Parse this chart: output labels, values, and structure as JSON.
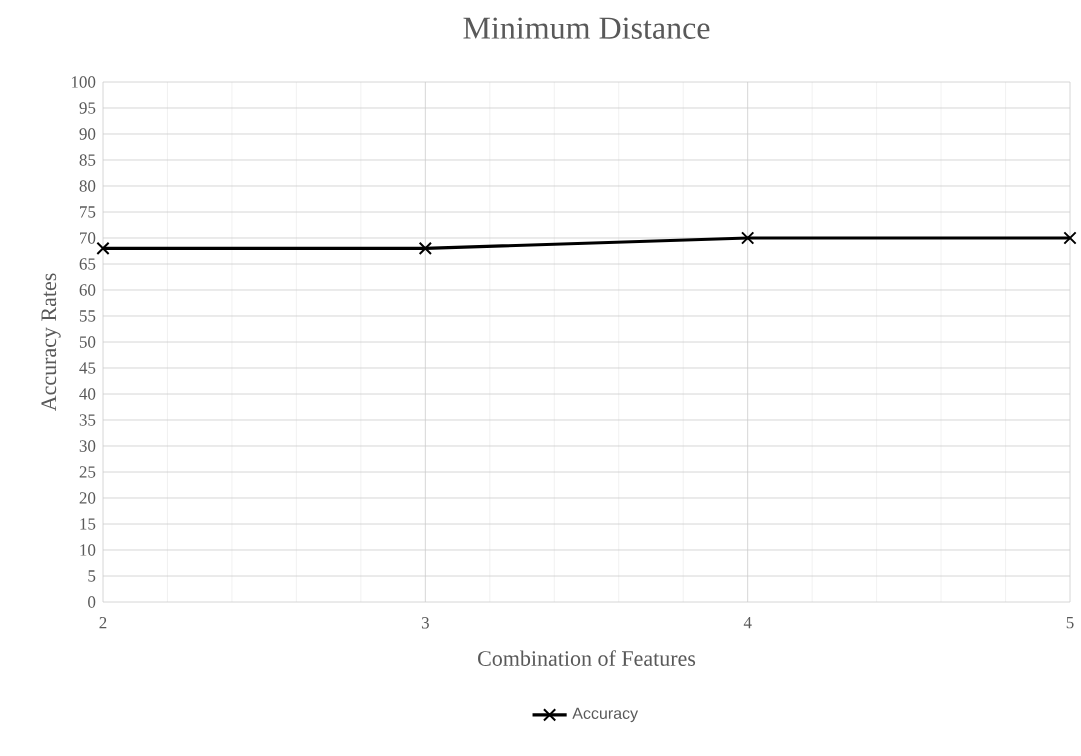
{
  "chart_data": {
    "type": "line",
    "title": "Minimum Distance",
    "xlabel": "Combination of Features",
    "ylabel": "Accuracy Rates",
    "x": [
      2,
      3,
      4,
      5
    ],
    "series": [
      {
        "name": "Accuracy",
        "color": "#000000",
        "values": [
          68,
          68,
          70,
          70
        ]
      }
    ],
    "xlim": [
      2,
      5
    ],
    "xticks": [
      2,
      3,
      4,
      5
    ],
    "ylim": [
      0,
      100
    ],
    "yticks": [
      0,
      5,
      10,
      15,
      20,
      25,
      30,
      35,
      40,
      45,
      50,
      55,
      60,
      65,
      70,
      75,
      80,
      85,
      90,
      95,
      100
    ],
    "grid": true,
    "legend": "bottom",
    "marker": "cross",
    "line_style": "solid"
  }
}
